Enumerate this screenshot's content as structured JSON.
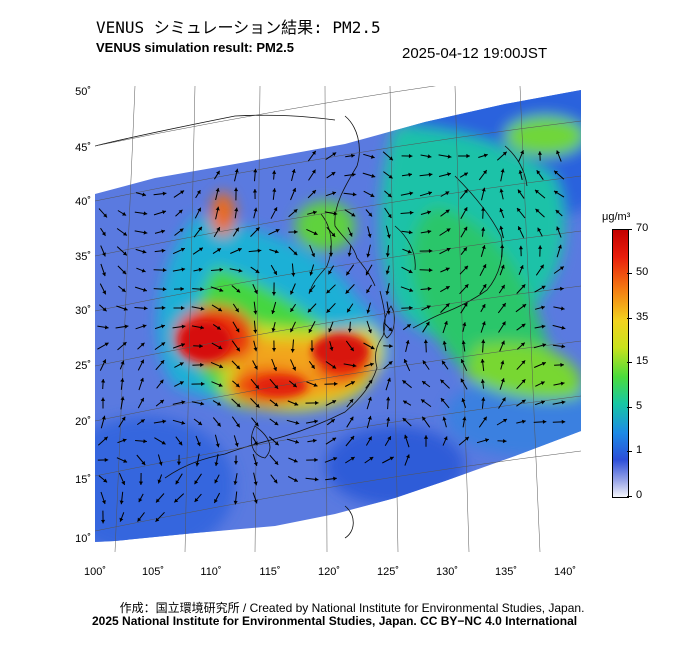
{
  "header": {
    "title_jp": "VENUS シミュレーション結果: PM2.5",
    "title_en": "VENUS simulation result: PM2.5",
    "timestamp": "2025-04-12 19:00JST"
  },
  "map": {
    "lat_labels": [
      "50˚",
      "45˚",
      "40˚",
      "35˚",
      "30˚",
      "25˚",
      "20˚",
      "15˚",
      "10˚"
    ],
    "lon_labels": [
      "100˚",
      "105˚",
      "110˚",
      "115˚",
      "120˚",
      "125˚",
      "130˚",
      "135˚",
      "140˚"
    ]
  },
  "colorbar": {
    "unit": "μg/m³",
    "labels": [
      "70",
      "50",
      "35",
      "15",
      "5",
      "1",
      "0"
    ],
    "colors": [
      "#c30000",
      "#e81d0c",
      "#f47a12",
      "#f2d31f",
      "#4bdc3c",
      "#17c7a4",
      "#1d8ae6",
      "#2c4ed8",
      "#9aa6e8",
      "#f4f5fb"
    ]
  },
  "credits": {
    "line1": "作成：国立環境研究所 / Created by National Institute for Environmental Studies, Japan.",
    "line2": "2025 National Institute for Environmental Studies, Japan. CC BY−NC 4.0 International"
  }
}
